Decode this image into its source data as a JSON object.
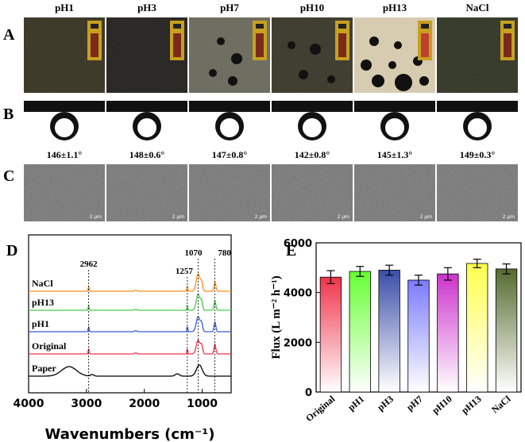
{
  "panel_letters": {
    "A": "A",
    "B": "B",
    "C": "C",
    "D": "D",
    "E": "E"
  },
  "conditions": [
    "pH1",
    "pH3",
    "pH7",
    "pH10",
    "pH13",
    "NaCl"
  ],
  "contact_angles": [
    "146±1.1°",
    "148±0.6°",
    "147±0.8°",
    "142±0.8°",
    "145±1.3°",
    "149±0.3°"
  ],
  "sem_scale_label": "2 μm",
  "chart_data": [
    {
      "type": "line",
      "panel": "D",
      "xlabel": "Wavenumbers (cm⁻¹)",
      "ylabel": "",
      "xlim": [
        4000,
        500
      ],
      "x_ticks": [
        4000,
        3000,
        2000,
        1000
      ],
      "series": [
        {
          "name": "NaCl",
          "color": "#ff8c1a"
        },
        {
          "name": "pH13",
          "color": "#4cc94c"
        },
        {
          "name": "pH1",
          "color": "#3b5bdb"
        },
        {
          "name": "Original",
          "color": "#f0344c"
        },
        {
          "name": "Paper",
          "color": "#000000"
        }
      ],
      "peak_labels": [
        {
          "x": 2962,
          "label": "2962"
        },
        {
          "x": 1257,
          "label": "1257"
        },
        {
          "x": 1070,
          "label": "1070"
        },
        {
          "x": 780,
          "label": "780"
        }
      ]
    },
    {
      "type": "bar",
      "panel": "E",
      "categories": [
        "Original",
        "pH1",
        "pH3",
        "pH7",
        "pH10",
        "pH13",
        "NaCl"
      ],
      "values": [
        4620,
        4850,
        4900,
        4500,
        4750,
        5170,
        4950
      ],
      "errors": [
        260,
        200,
        200,
        200,
        250,
        170,
        200
      ],
      "colors": [
        "#f0344c",
        "#66ff33",
        "#3b4ea8",
        "#7b7bff",
        "#cc33cc",
        "#ffff4d",
        "#556b2f"
      ],
      "ylabel": "Flux (L m⁻² h⁻¹)",
      "ylim": [
        0,
        6000
      ],
      "y_ticks": [
        0,
        2000,
        4000,
        6000
      ]
    }
  ]
}
